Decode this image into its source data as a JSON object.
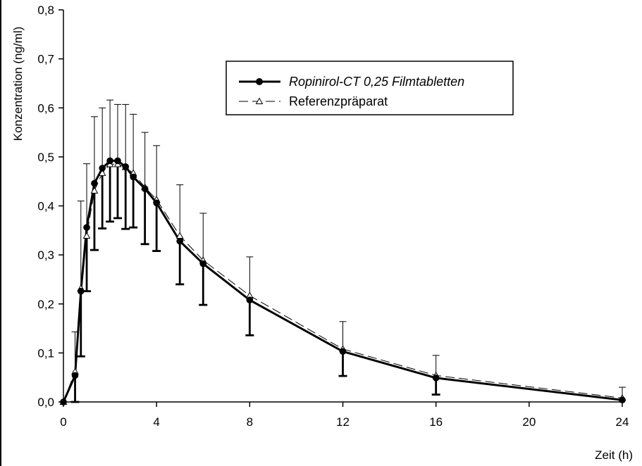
{
  "chart_data": {
    "type": "line",
    "title": "",
    "xlabel": "Zeit (h)",
    "ylabel": "Konzentration (ng/ml)",
    "xlim": [
      0,
      24
    ],
    "ylim": [
      0,
      0.8
    ],
    "grid": false,
    "legend_position": "top-right",
    "x_ticks": [
      0,
      4,
      8,
      12,
      16,
      20,
      24
    ],
    "x_tick_labels": [
      "0",
      "4",
      "8",
      "12",
      "16",
      "20",
      "24"
    ],
    "y_ticks": [
      0,
      0.1,
      0.2,
      0.3,
      0.4,
      0.5,
      0.6,
      0.7,
      0.8
    ],
    "y_tick_labels": [
      "0,0",
      "0,1",
      "0,2",
      "0,3",
      "0,4",
      "0,5",
      "0,6",
      "0,7",
      "0,8"
    ],
    "series": [
      {
        "name": "Ropinirol-CT 0,25 Filmtabletten",
        "style": "solid",
        "marker": "filled-circle",
        "color": "#000000",
        "error_direction": "down",
        "points": [
          {
            "x": 0,
            "y": 0.0,
            "err": 0
          },
          {
            "x": 0.5,
            "y": 0.054,
            "err": 0.054
          },
          {
            "x": 0.75,
            "y": 0.226,
            "err": 0.133
          },
          {
            "x": 1.0,
            "y": 0.356,
            "err": 0.13
          },
          {
            "x": 1.33,
            "y": 0.446,
            "err": 0.136
          },
          {
            "x": 1.67,
            "y": 0.477,
            "err": 0.123
          },
          {
            "x": 2.0,
            "y": 0.492,
            "err": 0.124
          },
          {
            "x": 2.33,
            "y": 0.492,
            "err": 0.117
          },
          {
            "x": 2.67,
            "y": 0.48,
            "err": 0.127
          },
          {
            "x": 3.0,
            "y": 0.459,
            "err": 0.103
          },
          {
            "x": 3.5,
            "y": 0.435,
            "err": 0.113
          },
          {
            "x": 4.0,
            "y": 0.406,
            "err": 0.098
          },
          {
            "x": 5.0,
            "y": 0.328,
            "err": 0.088
          },
          {
            "x": 6.0,
            "y": 0.282,
            "err": 0.084
          },
          {
            "x": 8.0,
            "y": 0.208,
            "err": 0.072
          },
          {
            "x": 12.0,
            "y": 0.103,
            "err": 0.05
          },
          {
            "x": 16.0,
            "y": 0.049,
            "err": 0.034
          },
          {
            "x": 24.0,
            "y": 0.004,
            "err": 0
          }
        ]
      },
      {
        "name": "Referenzpräparat",
        "style": "dashed",
        "marker": "open-triangle",
        "color": "#000000",
        "error_direction": "up",
        "points": [
          {
            "x": 0,
            "y": 0.0,
            "err": 0
          },
          {
            "x": 0.5,
            "y": 0.062,
            "err": 0.081
          },
          {
            "x": 0.75,
            "y": 0.232,
            "err": 0.178
          },
          {
            "x": 1.0,
            "y": 0.339,
            "err": 0.147
          },
          {
            "x": 1.33,
            "y": 0.431,
            "err": 0.151
          },
          {
            "x": 1.67,
            "y": 0.467,
            "err": 0.133
          },
          {
            "x": 2.0,
            "y": 0.485,
            "err": 0.131
          },
          {
            "x": 2.33,
            "y": 0.485,
            "err": 0.122
          },
          {
            "x": 2.67,
            "y": 0.479,
            "err": 0.128
          },
          {
            "x": 3.0,
            "y": 0.467,
            "err": 0.12
          },
          {
            "x": 3.5,
            "y": 0.438,
            "err": 0.112
          },
          {
            "x": 4.0,
            "y": 0.413,
            "err": 0.11
          },
          {
            "x": 5.0,
            "y": 0.339,
            "err": 0.104
          },
          {
            "x": 6.0,
            "y": 0.289,
            "err": 0.096
          },
          {
            "x": 8.0,
            "y": 0.217,
            "err": 0.079
          },
          {
            "x": 12.0,
            "y": 0.108,
            "err": 0.056
          },
          {
            "x": 16.0,
            "y": 0.054,
            "err": 0.041
          },
          {
            "x": 24.0,
            "y": 0.008,
            "err": 0.022
          }
        ]
      }
    ]
  }
}
